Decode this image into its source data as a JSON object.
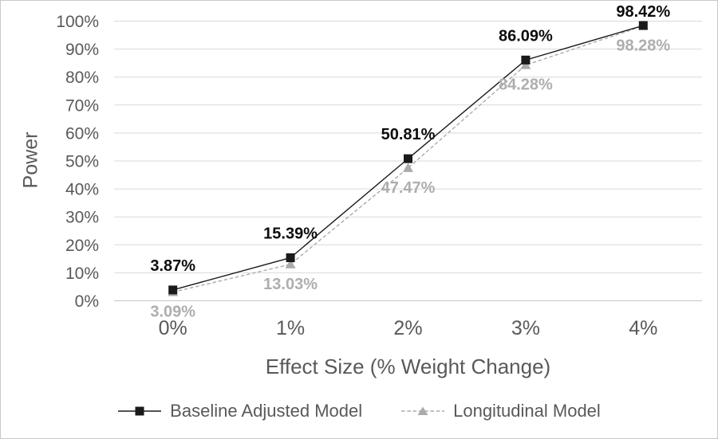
{
  "chart_data": {
    "type": "line",
    "xlabel": "Effect Size (% Weight Change)",
    "ylabel": "Power",
    "categories": [
      "0%",
      "1%",
      "2%",
      "3%",
      "4%"
    ],
    "y_ticks": [
      {
        "value": 0,
        "label": "0%"
      },
      {
        "value": 10,
        "label": "10%"
      },
      {
        "value": 20,
        "label": "20%"
      },
      {
        "value": 30,
        "label": "30%"
      },
      {
        "value": 40,
        "label": "40%"
      },
      {
        "value": 50,
        "label": "50%"
      },
      {
        "value": 60,
        "label": "60%"
      },
      {
        "value": 70,
        "label": "70%"
      },
      {
        "value": 80,
        "label": "80%"
      },
      {
        "value": 90,
        "label": "90%"
      },
      {
        "value": 100,
        "label": "100%"
      }
    ],
    "ylim": [
      0,
      100
    ],
    "grid": true,
    "legend_position": "bottom",
    "series": [
      {
        "name": "Baseline Adjusted Model",
        "values": [
          3.87,
          15.39,
          50.81,
          86.09,
          98.42
        ],
        "labels": [
          "3.87%",
          "15.39%",
          "50.81%",
          "86.09%",
          "98.42%"
        ],
        "color": "#1a1a1a",
        "label_color": "#0d0d0d",
        "marker": "square",
        "line": "solid",
        "label_pos": "above"
      },
      {
        "name": "Longitudinal Model",
        "values": [
          3.09,
          13.03,
          47.47,
          84.28,
          98.28
        ],
        "labels": [
          "3.09%",
          "13.03%",
          "47.47%",
          "84.28%",
          "98.28%"
        ],
        "color": "#ababab",
        "label_color": "#aeaeae",
        "marker": "triangle",
        "line": "dashed",
        "label_pos": "below"
      }
    ],
    "colors": {
      "grid": "#d9d9d9",
      "axis": "#c6c6c6",
      "tick_text": "#595959"
    }
  }
}
